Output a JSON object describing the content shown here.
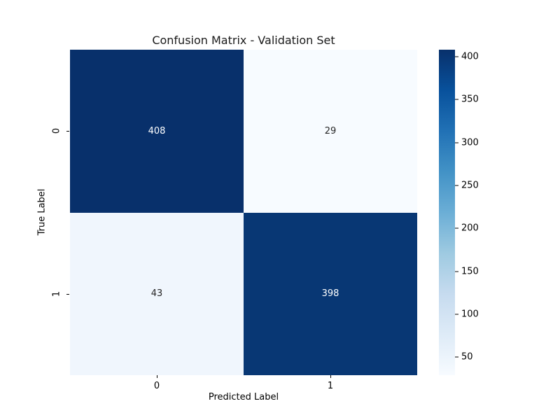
{
  "chart_data": {
    "type": "heatmap",
    "title": "Confusion Matrix - Validation Set",
    "xlabel": "Predicted Label",
    "ylabel": "True Label",
    "x_ticklabels": [
      "0",
      "1"
    ],
    "y_ticklabels": [
      "0",
      "1"
    ],
    "matrix": [
      [
        408,
        29
      ],
      [
        43,
        398
      ]
    ],
    "vmin": 29,
    "vmax": 408,
    "colormap": "Blues",
    "colorbar_ticks": [
      400,
      350,
      300,
      250,
      200,
      150,
      100,
      50
    ],
    "colormap_stops_top_to_bottom": [
      "#08306b",
      "#08519c",
      "#2171b5",
      "#4292c6",
      "#6baed6",
      "#9ecae1",
      "#c6dbef",
      "#deebf7",
      "#f7fbff"
    ],
    "cell_colors": [
      [
        "#08306b",
        "#f7fbff"
      ],
      [
        "#f0f6fd",
        "#083774"
      ]
    ],
    "cell_text_colors": [
      [
        "#ffffff",
        "#262626"
      ],
      [
        "#262626",
        "#ffffff"
      ]
    ],
    "layout": {
      "grid": false,
      "colorbar_position": "right",
      "background": "#ffffff"
    }
  }
}
